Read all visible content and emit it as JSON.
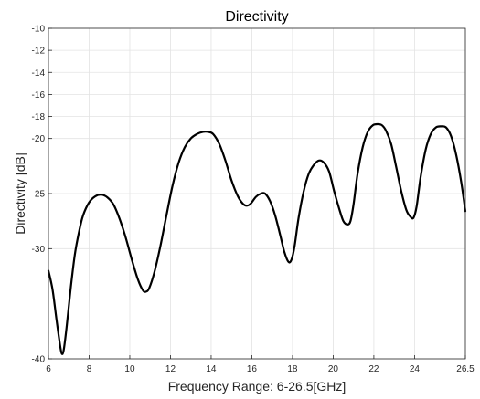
{
  "chart_data": {
    "type": "line",
    "title": "Directivity",
    "xlabel": "Frequency Range: 6-26.5[GHz]",
    "ylabel": "Directivity [dB]",
    "xlim": [
      6,
      26.5
    ],
    "ylim": [
      -40,
      -10
    ],
    "grid": true,
    "x_ticks": [
      6,
      8,
      10,
      12,
      14,
      16,
      18,
      20,
      22,
      24,
      26.5
    ],
    "x_tick_labels": [
      "6",
      "8",
      "10",
      "12",
      "14",
      "16",
      "18",
      "20",
      "22",
      "24",
      "26.5"
    ],
    "y_ticks": [
      -10,
      -12,
      -14,
      -16,
      -18,
      -20,
      -25,
      -30,
      -40
    ],
    "y_tick_labels": [
      "-10",
      "-12",
      "-14",
      "-16",
      "-18",
      "-20",
      "-25",
      "-30",
      "-40"
    ],
    "series": [
      {
        "color": "#000000",
        "x": [
          6.0,
          6.2,
          6.4,
          6.55,
          6.65,
          6.75,
          6.9,
          7.1,
          7.3,
          7.5,
          7.7,
          8.0,
          8.3,
          8.6,
          8.9,
          9.2,
          9.5,
          9.8,
          10.1,
          10.4,
          10.65,
          10.8,
          10.95,
          11.2,
          11.5,
          11.8,
          12.1,
          12.4,
          12.7,
          13.0,
          13.3,
          13.6,
          13.85,
          14.1,
          14.4,
          14.7,
          15.0,
          15.3,
          15.55,
          15.75,
          15.95,
          16.2,
          16.45,
          16.65,
          16.9,
          17.15,
          17.4,
          17.6,
          17.8,
          17.95,
          18.1,
          18.3,
          18.55,
          18.8,
          19.05,
          19.3,
          19.55,
          19.8,
          20.05,
          20.3,
          20.5,
          20.7,
          20.85,
          21.0,
          21.2,
          21.45,
          21.7,
          21.95,
          22.2,
          22.4,
          22.6,
          22.85,
          23.1,
          23.35,
          23.6,
          23.8,
          23.95,
          24.1,
          24.3,
          24.55,
          24.8,
          25.05,
          25.3,
          25.55,
          25.8,
          26.05,
          26.3,
          26.5
        ],
        "y": [
          -32.0,
          -33.7,
          -36.5,
          -38.5,
          -39.5,
          -39.2,
          -37.0,
          -33.5,
          -30.5,
          -28.5,
          -27.0,
          -25.8,
          -25.25,
          -25.1,
          -25.35,
          -26.0,
          -27.3,
          -29.0,
          -31.0,
          -32.8,
          -33.8,
          -33.9,
          -33.6,
          -32.2,
          -29.8,
          -27.0,
          -24.3,
          -22.2,
          -20.8,
          -20.0,
          -19.6,
          -19.4,
          -19.4,
          -19.6,
          -20.5,
          -22.0,
          -23.8,
          -25.2,
          -25.9,
          -26.1,
          -25.9,
          -25.3,
          -25.0,
          -25.0,
          -25.7,
          -27.0,
          -28.8,
          -30.3,
          -31.2,
          -31.0,
          -29.8,
          -27.2,
          -24.8,
          -23.2,
          -22.4,
          -22.0,
          -22.2,
          -23.0,
          -24.8,
          -26.4,
          -27.5,
          -27.8,
          -27.5,
          -26.0,
          -23.2,
          -20.8,
          -19.4,
          -18.8,
          -18.7,
          -18.8,
          -19.3,
          -20.5,
          -22.6,
          -24.8,
          -26.5,
          -27.1,
          -27.2,
          -26.2,
          -23.5,
          -21.0,
          -19.6,
          -19.0,
          -18.9,
          -19.0,
          -19.8,
          -21.5,
          -24.0,
          -26.6
        ]
      }
    ]
  }
}
